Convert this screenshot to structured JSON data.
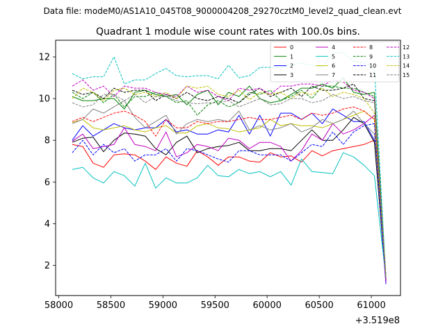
{
  "chart_data": {
    "type": "line",
    "suptitle": "Data file: modeM0/AS1A10_045T08_9000004208_29270cztM0_level2_quad_clean.evt",
    "title": "Quadrant 1 module wise count rates with 100.0s bins.",
    "xlabel": "",
    "ylabel": "",
    "x_offset_label": "+3.519e8",
    "xlim": [
      57970,
      61280
    ],
    "ylim": [
      0.55,
      12.8
    ],
    "xticks": [
      58000,
      58500,
      59000,
      59500,
      60000,
      60500,
      61000
    ],
    "yticks": [
      2,
      4,
      6,
      8,
      10,
      12
    ],
    "legend_location": "upper right",
    "legend_columns": 4,
    "x": [
      58130,
      58230,
      58330,
      58430,
      58530,
      58630,
      58730,
      58830,
      58930,
      59030,
      59130,
      59230,
      59330,
      59430,
      59530,
      59630,
      59730,
      59830,
      59930,
      60030,
      60130,
      60230,
      60330,
      60430,
      60530,
      60630,
      60730,
      60830,
      60930,
      61030,
      61140
    ],
    "series": [
      {
        "name": "0",
        "color": "#ff0000",
        "dashed": false,
        "values": [
          7.8,
          7.7,
          6.9,
          6.7,
          7.3,
          7.35,
          7.3,
          7.0,
          6.6,
          7.2,
          6.9,
          6.75,
          7.5,
          7.2,
          6.8,
          7.2,
          7.2,
          7.0,
          6.95,
          7.4,
          7.2,
          7.25,
          6.95,
          7.5,
          7.25,
          7.5,
          7.6,
          7.7,
          7.8,
          8.0,
          1.5
        ]
      },
      {
        "name": "1",
        "color": "#008000",
        "dashed": false,
        "values": [
          10.1,
          9.9,
          9.9,
          10.0,
          10.0,
          9.5,
          10.3,
          10.4,
          10.2,
          10.1,
          10.2,
          9.7,
          10.2,
          10.4,
          9.7,
          10.3,
          10.1,
          10.6,
          10.0,
          9.8,
          9.9,
          10.2,
          10.5,
          10.5,
          10.7,
          10.5,
          11.0,
          10.3,
          10.2,
          10.3,
          1.5
        ]
      },
      {
        "name": "2",
        "color": "#0000ff",
        "dashed": false,
        "values": [
          8.0,
          8.7,
          8.2,
          8.5,
          8.8,
          8.6,
          8.5,
          8.6,
          8.6,
          9.0,
          8.4,
          8.5,
          8.3,
          8.3,
          8.5,
          8.4,
          9.2,
          8.3,
          9.2,
          8.2,
          9.3,
          9.3,
          9.0,
          9.3,
          8.8,
          9.5,
          9.2,
          8.9,
          8.9,
          8.0,
          1.2
        ]
      },
      {
        "name": "3",
        "color": "#000000",
        "dashed": false,
        "values": [
          7.9,
          8.1,
          8.15,
          7.45,
          8.0,
          8.35,
          8.3,
          8.2,
          7.6,
          7.3,
          7.9,
          8.2,
          7.4,
          7.6,
          7.7,
          7.75,
          7.9,
          7.5,
          7.5,
          7.6,
          7.6,
          7.5,
          8.0,
          8.5,
          8.0,
          8.0,
          8.5,
          9.1,
          8.8,
          7.9,
          1.3
        ]
      },
      {
        "name": "4",
        "color": "#bf00bf",
        "dashed": false,
        "values": [
          7.95,
          8.3,
          7.6,
          7.7,
          7.8,
          8.6,
          7.8,
          7.7,
          7.5,
          8.4,
          7.2,
          7.4,
          7.8,
          7.7,
          7.5,
          8.1,
          8.0,
          7.6,
          7.9,
          7.9,
          7.7,
          7.0,
          7.5,
          8.3,
          8.0,
          8.8,
          8.3,
          8.5,
          8.8,
          9.2,
          1.1
        ]
      },
      {
        "name": "5",
        "color": "#00bfbf",
        "dashed": false,
        "values": [
          6.6,
          6.7,
          6.2,
          5.95,
          6.5,
          6.3,
          5.8,
          6.9,
          5.7,
          6.2,
          5.95,
          5.95,
          6.2,
          6.8,
          6.3,
          6.25,
          6.6,
          6.4,
          6.5,
          6.25,
          6.5,
          5.85,
          7.1,
          6.5,
          6.45,
          6.4,
          7.4,
          7.2,
          6.8,
          6.3,
          1.4
        ]
      },
      {
        "name": "6",
        "color": "#bfbf00",
        "dashed": false,
        "values": [
          8.85,
          9.0,
          8.6,
          8.5,
          8.6,
          8.7,
          8.5,
          8.4,
          8.6,
          8.7,
          8.35,
          8.35,
          8.7,
          8.8,
          8.6,
          8.55,
          8.4,
          8.5,
          8.6,
          9.0,
          8.7,
          8.8,
          8.7,
          8.7,
          8.6,
          8.8,
          9.0,
          9.2,
          9.4,
          9.0,
          1.3
        ]
      },
      {
        "name": "7",
        "color": "#808080",
        "dashed": false,
        "values": [
          8.8,
          9.0,
          9.5,
          9.3,
          9.6,
          9.9,
          9.1,
          8.6,
          8.9,
          9.2,
          8.3,
          8.8,
          9.0,
          8.9,
          9.0,
          8.9,
          9.4,
          8.5,
          8.7,
          8.5,
          8.6,
          8.8,
          8.4,
          8.6,
          9.0,
          8.8,
          9.0,
          9.4,
          8.8,
          8.3,
          1.3
        ]
      },
      {
        "name": "8",
        "color": "#ff0000",
        "dashed": true,
        "values": [
          8.9,
          9.1,
          8.9,
          9.1,
          9.3,
          9.4,
          9.2,
          8.9,
          8.2,
          9.0,
          8.6,
          8.6,
          8.9,
          8.8,
          8.9,
          8.9,
          9.0,
          9.1,
          9.0,
          9.0,
          9.1,
          9.2,
          9.0,
          9.3,
          9.2,
          9.3,
          9.5,
          9.6,
          9.4,
          9.0,
          1.3
        ]
      },
      {
        "name": "9",
        "color": "#008000",
        "dashed": true,
        "values": [
          10.3,
          10.0,
          10.3,
          9.8,
          10.2,
          9.6,
          10.1,
          10.1,
          10.3,
          10.1,
          9.8,
          9.9,
          9.2,
          9.7,
          9.9,
          9.6,
          9.8,
          10.3,
          10.2,
          10.4,
          9.9,
          10.1,
          10.4,
          10.0,
          10.6,
          10.6,
          10.5,
          10.5,
          10.3,
          10.1,
          1.4
        ]
      },
      {
        "name": "10",
        "color": "#0000ff",
        "dashed": true,
        "values": [
          7.4,
          8.0,
          7.3,
          7.8,
          7.4,
          7.6,
          7.0,
          7.3,
          7.3,
          7.6,
          7.0,
          7.6,
          7.5,
          7.3,
          7.1,
          6.95,
          7.5,
          7.5,
          7.3,
          7.3,
          7.3,
          7.0,
          7.4,
          7.8,
          7.7,
          8.4,
          7.8,
          8.4,
          8.7,
          8.8,
          1.1
        ]
      },
      {
        "name": "11",
        "color": "#000000",
        "dashed": true,
        "values": [
          10.4,
          10.2,
          10.3,
          10.0,
          10.5,
          10.3,
          10.4,
          10.4,
          9.9,
          10.2,
          10.0,
          10.3,
          10.0,
          9.9,
          10.1,
          10.0,
          9.8,
          10.2,
          10.5,
          10.1,
          10.3,
          10.5,
          10.1,
          10.6,
          10.4,
          10.4,
          10.5,
          10.7,
          10.0,
          9.9,
          1.3
        ]
      },
      {
        "name": "12",
        "color": "#bf00bf",
        "dashed": true,
        "values": [
          10.6,
          10.9,
          10.4,
          10.6,
          10.1,
          10.6,
          10.5,
          10.5,
          10.3,
          10.2,
          10.1,
          10.6,
          10.3,
          10.4,
          10.1,
          9.9,
          10.5,
          10.4,
          10.5,
          10.2,
          10.6,
          10.6,
          10.7,
          10.7,
          10.6,
          10.9,
          10.8,
          10.4,
          10.3,
          10.0,
          1.2
        ]
      },
      {
        "name": "13",
        "color": "#00bfbf",
        "dashed": true,
        "values": [
          11.2,
          10.95,
          11.05,
          11.05,
          12.0,
          10.7,
          10.9,
          10.9,
          11.2,
          11.45,
          11.1,
          11.05,
          11.1,
          11.1,
          10.95,
          11.6,
          11.0,
          11.1,
          11.5,
          11.5,
          11.5,
          11.6,
          11.7,
          11.6,
          11.5,
          12.2,
          12.2,
          11.8,
          11.7,
          11.5,
          1.4
        ]
      },
      {
        "name": "14",
        "color": "#bfbf00",
        "dashed": true,
        "values": [
          10.0,
          10.5,
          10.3,
          9.9,
          10.4,
          10.5,
          10.2,
          10.3,
          10.1,
          10.3,
          10.0,
          10.6,
          10.5,
          10.6,
          10.2,
          10.1,
          10.4,
          9.95,
          10.3,
          10.2,
          10.3,
          10.0,
          10.3,
          10.2,
          10.5,
          10.1,
          10.3,
          10.2,
          10.0,
          9.3,
          1.5
        ]
      },
      {
        "name": "15",
        "color": "#808080",
        "dashed": true,
        "values": [
          9.8,
          9.6,
          9.7,
          10.2,
          10.2,
          9.9,
          10.2,
          9.8,
          10.1,
          10.1,
          9.9,
          9.8,
          9.75,
          9.8,
          9.8,
          9.9,
          9.6,
          9.8,
          10.0,
          9.7,
          9.75,
          10.0,
          10.0,
          9.8,
          9.9,
          10.2,
          10.0,
          10.1,
          9.9,
          9.8,
          1.4
        ]
      }
    ]
  }
}
